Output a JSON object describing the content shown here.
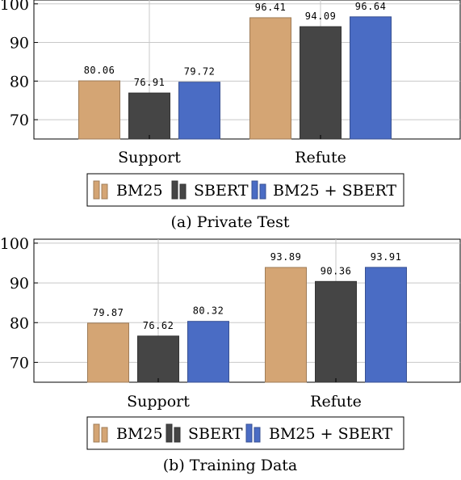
{
  "chart_data": [
    {
      "type": "bar",
      "caption": "(a) Private Test",
      "categories": [
        "Support",
        "Refute"
      ],
      "series": [
        {
          "name": "BM25",
          "values": [
            80.06,
            96.41
          ],
          "color": "#d4a574"
        },
        {
          "name": "SBERT",
          "values": [
            76.91,
            94.09
          ],
          "color": "#454545"
        },
        {
          "name": "BM25 + SBERT",
          "values": [
            79.72,
            96.64
          ],
          "color": "#4a6cc4"
        }
      ],
      "data_labels": [
        [
          "80.06",
          "96.41"
        ],
        [
          "76.91",
          "94.09"
        ],
        [
          "79.72",
          "96.64"
        ]
      ],
      "yticks": [
        70,
        80,
        90,
        100
      ],
      "ylim": [
        65,
        101
      ],
      "grid": true,
      "legend_position": "below"
    },
    {
      "type": "bar",
      "caption": "(b) Training Data",
      "categories": [
        "Support",
        "Refute"
      ],
      "series": [
        {
          "name": "BM25",
          "values": [
            79.87,
            93.89
          ],
          "color": "#d4a574"
        },
        {
          "name": "SBERT",
          "values": [
            76.62,
            90.36
          ],
          "color": "#454545"
        },
        {
          "name": "BM25 + SBERT",
          "values": [
            80.32,
            93.91
          ],
          "color": "#4a6cc4"
        }
      ],
      "data_labels": [
        [
          "79.87",
          "93.89"
        ],
        [
          "76.62",
          "90.36"
        ],
        [
          "80.32",
          "93.91"
        ]
      ],
      "yticks": [
        70,
        80,
        90,
        100
      ],
      "ylim": [
        65,
        101
      ],
      "grid": true,
      "legend_position": "below"
    }
  ]
}
